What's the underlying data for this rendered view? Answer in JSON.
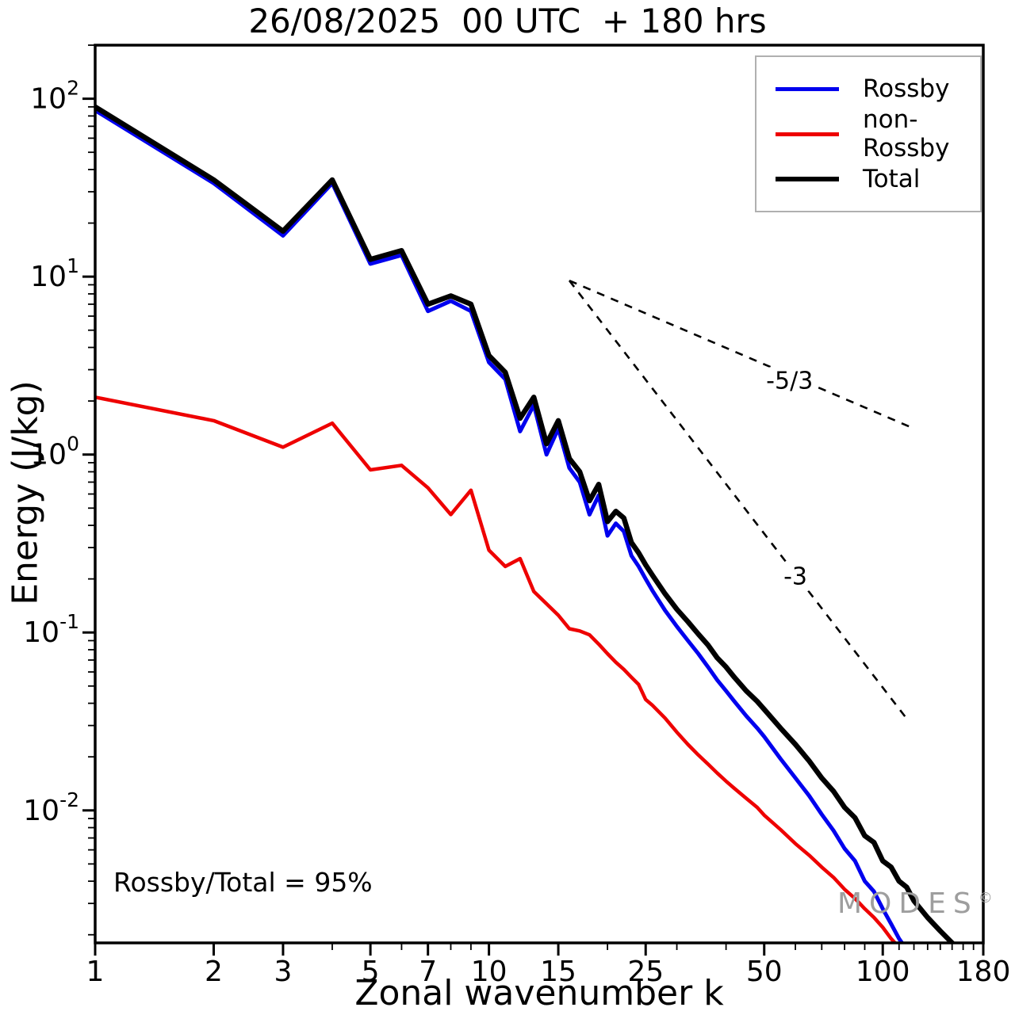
{
  "title": "26/08/2025  00 UTC  + 180 hrs",
  "axes": {
    "x_label": "Zonal wavenumber k",
    "y_label": "Energy (J/kg)",
    "x_major_ticks": [
      1,
      2,
      3,
      5,
      7,
      10,
      15,
      25,
      50,
      100,
      180
    ],
    "x_minor_ticks": [
      4,
      6,
      8,
      9,
      20,
      30,
      40,
      60,
      70,
      80,
      90,
      110,
      120,
      130,
      140,
      150,
      160,
      170
    ],
    "y_tick_exponents": [
      2,
      1,
      0,
      -1,
      -2
    ]
  },
  "legend": {
    "items": [
      {
        "label": "Rossby",
        "color": "#0000ee"
      },
      {
        "label": "non-Rossby",
        "color": "#ee0000"
      },
      {
        "label": "Total",
        "color": "#000000"
      }
    ]
  },
  "annotation": {
    "ratio_text": "Rossby/Total = 95%"
  },
  "watermark": {
    "text": "MODES",
    "symbol": "©"
  },
  "chart_data": {
    "type": "line",
    "title": "26/08/2025  00 UTC  + 180 hrs",
    "xlabel": "Zonal wavenumber k",
    "ylabel": "Energy (J/kg)",
    "xscale": "log",
    "yscale": "log",
    "xlim": [
      1,
      180
    ],
    "ylim": [
      0.0018,
      200
    ],
    "grid": false,
    "legend_position": "upper right",
    "x": [
      1,
      2,
      3,
      4,
      5,
      6,
      7,
      8,
      9,
      10,
      11,
      12,
      13,
      14,
      15,
      16,
      17,
      18,
      19,
      20,
      21,
      22,
      23,
      24,
      25,
      26,
      28,
      30,
      32,
      34,
      36,
      38,
      40,
      42,
      45,
      48,
      50,
      55,
      60,
      65,
      70,
      75,
      80,
      85,
      90,
      95,
      100,
      105,
      110,
      115,
      120,
      130,
      140,
      150,
      160,
      165
    ],
    "series": [
      {
        "name": "Rossby",
        "color": "#0000ee",
        "width": 5,
        "values": [
          86,
          33.5,
          17,
          33.5,
          11.8,
          13.2,
          6.4,
          7.3,
          6.4,
          3.3,
          2.65,
          1.35,
          1.9,
          1.0,
          1.4,
          0.84,
          0.7,
          0.46,
          0.59,
          0.35,
          0.41,
          0.37,
          0.27,
          0.235,
          0.2,
          0.172,
          0.133,
          0.108,
          0.09,
          0.076,
          0.064,
          0.054,
          0.047,
          0.041,
          0.034,
          0.029,
          0.026,
          0.0195,
          0.0152,
          0.0121,
          0.0095,
          0.0077,
          0.0061,
          0.0052,
          0.004,
          0.0035,
          0.0028,
          0.0023,
          0.0019,
          0.00165,
          0.00148,
          null,
          null,
          null,
          null,
          null
        ]
      },
      {
        "name": "non-Rossby",
        "color": "#ee0000",
        "width": 4.5,
        "values": [
          2.1,
          1.55,
          1.1,
          1.5,
          0.82,
          0.87,
          0.65,
          0.46,
          0.63,
          0.29,
          0.235,
          0.26,
          0.17,
          0.145,
          0.125,
          0.105,
          0.102,
          0.097,
          0.086,
          0.076,
          0.068,
          0.062,
          0.056,
          0.051,
          0.042,
          0.039,
          0.033,
          0.0275,
          0.0235,
          0.0205,
          0.0182,
          0.0162,
          0.0146,
          0.0133,
          0.0117,
          0.0104,
          0.0094,
          0.0078,
          0.0065,
          0.0056,
          0.0048,
          0.0042,
          0.0036,
          0.0032,
          0.0028,
          0.0025,
          0.0022,
          0.0019,
          0.0017,
          0.00155,
          0.00142,
          null,
          null,
          null,
          null,
          null
        ]
      },
      {
        "name": "Total",
        "color": "#000000",
        "width": 6.5,
        "values": [
          90,
          35,
          18,
          35,
          12.5,
          14,
          7.0,
          7.8,
          7.0,
          3.6,
          2.9,
          1.6,
          2.1,
          1.15,
          1.55,
          0.95,
          0.8,
          0.55,
          0.68,
          0.42,
          0.48,
          0.44,
          0.32,
          0.28,
          0.24,
          0.21,
          0.165,
          0.135,
          0.115,
          0.098,
          0.085,
          0.072,
          0.064,
          0.056,
          0.047,
          0.041,
          0.037,
          0.029,
          0.0235,
          0.019,
          0.0152,
          0.0128,
          0.0104,
          0.0091,
          0.0072,
          0.0066,
          0.0052,
          0.0048,
          0.004,
          0.0037,
          0.0031,
          0.0025,
          0.0021,
          0.0018,
          0.00155,
          0.00145
        ]
      }
    ],
    "slope_guides": [
      {
        "label": "-5/3",
        "x": [
          16,
          120
        ],
        "y": [
          9.5,
          1.4
        ],
        "label_pos": [
          58,
          2.6
        ]
      },
      {
        "label": "-3",
        "x": [
          16,
          116
        ],
        "y": [
          9.5,
          0.032
        ],
        "label_pos": [
          60,
          0.205
        ]
      }
    ]
  }
}
